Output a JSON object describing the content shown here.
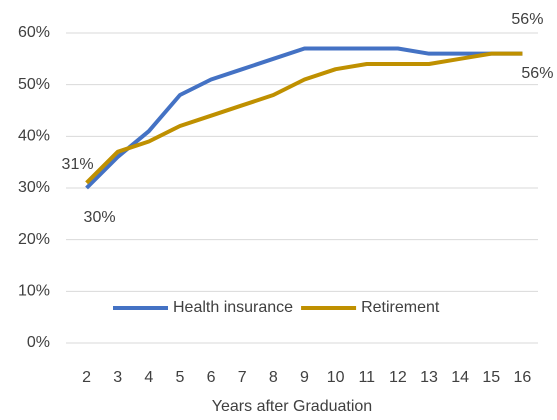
{
  "chart_data": {
    "type": "line",
    "categories": [
      "2",
      "3",
      "4",
      "5",
      "6",
      "7",
      "8",
      "9",
      "10",
      "11",
      "12",
      "13",
      "14",
      "15",
      "16"
    ],
    "series": [
      {
        "name": "Health insurance",
        "color": "#4472c4",
        "values": [
          30,
          36,
          41,
          48,
          51,
          53,
          55,
          57,
          57,
          57,
          57,
          56,
          56,
          56,
          56
        ],
        "value_labels": [
          "30%",
          null,
          null,
          null,
          null,
          null,
          null,
          null,
          null,
          null,
          null,
          null,
          null,
          null,
          "56%"
        ]
      },
      {
        "name": "Retirement",
        "color": "#bf9000",
        "values": [
          31,
          37,
          39,
          42,
          44,
          46,
          48,
          51,
          53,
          54,
          54,
          54,
          55,
          56,
          56
        ],
        "value_labels": [
          "31%",
          null,
          null,
          null,
          null,
          null,
          null,
          null,
          null,
          null,
          null,
          null,
          null,
          null,
          "56%"
        ]
      }
    ],
    "x_label": "Years after Graduation",
    "ylim": [
      0,
      60
    ],
    "yticks": [
      {
        "value": 0,
        "label": "0%"
      },
      {
        "value": 10,
        "label": "10%"
      },
      {
        "value": 20,
        "label": "20%"
      },
      {
        "value": 30,
        "label": "30%"
      },
      {
        "value": 40,
        "label": "40%"
      },
      {
        "value": 50,
        "label": "50%"
      },
      {
        "value": 60,
        "label": "60%"
      }
    ],
    "grid": true,
    "legend": "bottom"
  }
}
